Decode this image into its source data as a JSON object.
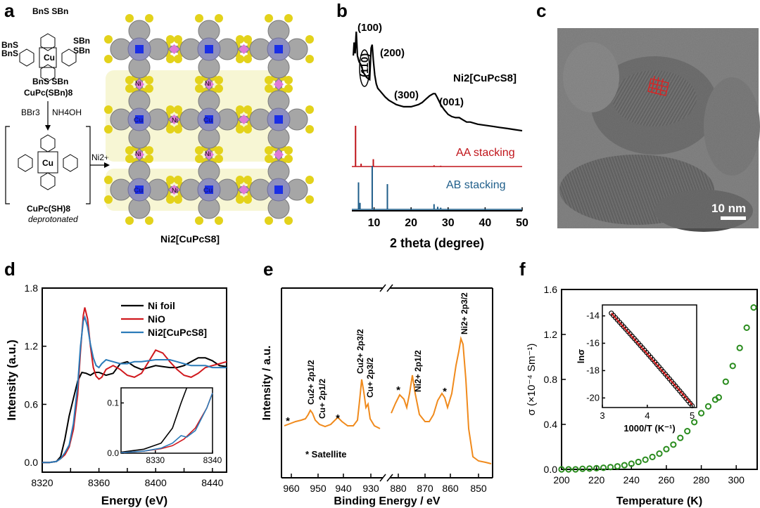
{
  "panel_labels": {
    "a": "a",
    "b": "b",
    "c": "c",
    "d": "d",
    "e": "e",
    "f": "f"
  },
  "panel_a": {
    "mol1_top": "BnS  SBn",
    "mol1_left": [
      "BnS",
      "BnS"
    ],
    "mol1_right": [
      "SBn",
      "SBn"
    ],
    "mol1_bottom": "BnS  SBn",
    "mol1_center": "Cu",
    "mol1_name": "CuPc(SBn)8",
    "reagent_left": "BBr3",
    "reagent_right": "NH4OH",
    "mol2_center": "Cu",
    "mol2_name": "CuPc(SH)8",
    "mol2_state": "deprotonated",
    "reagent_ni": "Ni2+",
    "framework_name": "Ni2[CuPcS8]",
    "atom_labels": {
      "cu": "Cu",
      "ni": "Ni",
      "s": "S",
      "n": "N"
    },
    "colors": {
      "cu": "#1a2ee6",
      "ni": "#e07ad8",
      "s": "#e3d21b",
      "c": "#8a8a8a",
      "n": "#8e8fbd",
      "highlight": "#f2f0b8"
    }
  },
  "panel_b": {
    "xlabel": "2 theta (degree)",
    "xticks": [
      10,
      20,
      30,
      40,
      50
    ],
    "peak_labels": [
      "(100)",
      "(110)",
      "(200)",
      "(300)",
      "(001)"
    ],
    "series_name": "Ni2[CuPcS8]",
    "aa_label": "AA stacking",
    "ab_label": "AB stacking",
    "colors": {
      "exp": "#000000",
      "aa": "#c0141a",
      "ab": "#1f5e8a"
    },
    "exp": {
      "x": [
        4.4,
        4.6,
        4.9,
        5.1,
        5.2,
        5.5,
        5.8,
        6.0,
        6.4,
        6.8,
        7.2,
        7.6,
        8.0,
        8.4,
        8.8,
        9.0,
        9.2,
        9.5,
        9.8,
        10.2,
        10.6,
        11.0,
        12,
        13,
        14,
        15,
        16,
        17,
        18,
        19,
        20,
        21,
        22,
        23,
        24,
        25,
        26,
        26.5,
        27,
        28,
        29,
        30,
        31,
        32,
        33,
        34,
        35,
        36,
        38,
        40,
        42,
        44,
        46,
        48,
        50
      ],
      "y": [
        0.78,
        0.9,
        0.8,
        0.95,
        1.0,
        0.78,
        0.74,
        0.72,
        0.7,
        0.66,
        0.62,
        0.6,
        0.58,
        0.57,
        0.56,
        0.7,
        0.85,
        0.88,
        0.74,
        0.6,
        0.52,
        0.48,
        0.44,
        0.4,
        0.37,
        0.35,
        0.33,
        0.32,
        0.31,
        0.31,
        0.31,
        0.32,
        0.33,
        0.35,
        0.38,
        0.41,
        0.43,
        0.43,
        0.4,
        0.33,
        0.28,
        0.24,
        0.22,
        0.21,
        0.21,
        0.19,
        0.17,
        0.17,
        0.15,
        0.14,
        0.13,
        0.12,
        0.11,
        0.1,
        0.09
      ]
    },
    "aa_peaks": [
      [
        5.0,
        1.0
      ],
      [
        6.5,
        0.07
      ],
      [
        9.8,
        0.18
      ],
      [
        26.2,
        0.03
      ],
      [
        28.0,
        0.02
      ]
    ],
    "ab_peaks": [
      [
        5.8,
        0.62
      ],
      [
        6.2,
        0.15
      ],
      [
        9.5,
        1.0
      ],
      [
        13.6,
        0.58
      ],
      [
        26.2,
        0.12
      ],
      [
        27.2,
        0.06
      ],
      [
        28.0,
        0.04
      ]
    ]
  },
  "panel_c": {
    "scale_bar": "10 nm"
  },
  "panel_d": {
    "xlabel": "Energy (eV)",
    "ylabel": "Intensity (a.u.)",
    "xticks": [
      8320,
      8340,
      8360,
      8380,
      8400,
      8420,
      8440
    ],
    "yticks": [
      "0.0",
      "0.6",
      "1.2",
      "1.8"
    ],
    "legend": [
      "Ni foil",
      "NiO",
      "Ni2[CuPcS8]"
    ],
    "colors": [
      "#000000",
      "#d0191e",
      "#2b7bb9"
    ],
    "xlim": [
      8320,
      8450
    ],
    "ylim": [
      -0.1,
      1.8
    ],
    "series": [
      {
        "name": "Ni foil",
        "x": [
          8320,
          8325,
          8330,
          8333,
          8336,
          8339,
          8342,
          8345,
          8348,
          8351,
          8354,
          8357,
          8360,
          8365,
          8370,
          8375,
          8380,
          8385,
          8390,
          8395,
          8400,
          8405,
          8410,
          8415,
          8420,
          8425,
          8430,
          8435,
          8440,
          8445,
          8450
        ],
        "y": [
          0.0,
          0.0,
          0.01,
          0.06,
          0.24,
          0.48,
          0.66,
          0.84,
          0.93,
          0.92,
          0.9,
          0.93,
          0.93,
          0.9,
          0.92,
          1.02,
          1.04,
          0.99,
          0.96,
          0.98,
          1.0,
          0.99,
          0.98,
          0.98,
          1.0,
          1.04,
          1.08,
          1.08,
          1.05,
          1.0,
          0.99
        ]
      },
      {
        "name": "NiO",
        "x": [
          8320,
          8325,
          8330,
          8333,
          8336,
          8339,
          8342,
          8345,
          8347,
          8349,
          8350,
          8352,
          8354,
          8356,
          8358,
          8360,
          8362,
          8365,
          8370,
          8375,
          8380,
          8385,
          8390,
          8395,
          8400,
          8405,
          8410,
          8415,
          8420,
          8425,
          8430,
          8435,
          8440,
          8445,
          8450
        ],
        "y": [
          0.0,
          0.0,
          0.01,
          0.04,
          0.08,
          0.16,
          0.34,
          0.7,
          1.15,
          1.52,
          1.6,
          1.48,
          1.2,
          0.98,
          0.89,
          0.86,
          0.88,
          0.96,
          1.0,
          0.96,
          0.9,
          0.88,
          0.92,
          1.04,
          1.16,
          1.13,
          1.04,
          0.96,
          0.9,
          0.88,
          0.92,
          0.98,
          1.0,
          1.02,
          1.04
        ]
      },
      {
        "name": "Ni2[CuPcS8]",
        "x": [
          8320,
          8325,
          8330,
          8333,
          8336,
          8339,
          8342,
          8345,
          8347,
          8349,
          8350,
          8352,
          8354,
          8356,
          8358,
          8360,
          8362,
          8365,
          8370,
          8375,
          8380,
          8385,
          8390,
          8395,
          8400,
          8405,
          8410,
          8415,
          8420,
          8425,
          8430,
          8435,
          8440,
          8445,
          8450
        ],
        "y": [
          0.0,
          0.0,
          0.01,
          0.04,
          0.1,
          0.18,
          0.4,
          0.8,
          1.2,
          1.46,
          1.5,
          1.4,
          1.22,
          1.08,
          1.0,
          0.98,
          1.02,
          1.06,
          1.04,
          1.02,
          1.02,
          1.04,
          1.04,
          1.05,
          1.06,
          1.06,
          1.06,
          1.04,
          1.02,
          1.0,
          1.0,
          1.0,
          0.98,
          0.98,
          0.98
        ]
      }
    ],
    "inset": {
      "xticks": [
        8330,
        8340
      ],
      "yticks": [
        "0.0",
        "0.1"
      ],
      "xlim": [
        8324,
        8340
      ],
      "ylim": [
        0,
        0.13
      ]
    }
  },
  "panel_e": {
    "xlabel": "Binding Energy / eV",
    "ylabel": "Intensity / a.u.",
    "xticks": [
      "960",
      "950",
      "940",
      "930",
      "880",
      "870",
      "860",
      "850"
    ],
    "annotations": [
      "Cu2+ 2p1/2",
      "Cu+ 2p1/2",
      "Cu2+ 2p3/2",
      "Cu+ 2p3/2",
      "Ni2+ 2p1/2",
      "Ni2+ 2p3/2"
    ],
    "satellite_mark": "*",
    "legend_note": "* Satellite",
    "color": "#f08a1c"
  },
  "panel_f": {
    "xlabel": "Temperature (K)",
    "ylabel": "σ (×10⁻⁴ Sm⁻¹)",
    "xticks": [
      200,
      220,
      240,
      260,
      280,
      300
    ],
    "yticks": [
      "0.0",
      "0.4",
      "0.8",
      "1.2",
      "1.6"
    ],
    "xlim": [
      200,
      312
    ],
    "ylim": [
      0,
      1.6
    ],
    "color": "#2a8c1e",
    "points": {
      "x": [
        200,
        204,
        208,
        212,
        216,
        220,
        224,
        228,
        232,
        236,
        240,
        244,
        248,
        252,
        256,
        260,
        264,
        268,
        272,
        276,
        280,
        284,
        288,
        290,
        294,
        298,
        302,
        306,
        310
      ],
      "y": [
        0.0,
        0.0,
        0.0,
        0.005,
        0.007,
        0.01,
        0.014,
        0.02,
        0.027,
        0.037,
        0.05,
        0.066,
        0.086,
        0.11,
        0.14,
        0.18,
        0.22,
        0.28,
        0.34,
        0.42,
        0.5,
        0.56,
        0.62,
        0.64,
        0.78,
        0.92,
        1.08,
        1.26,
        1.44
      ]
    },
    "inset": {
      "xlabel": "1000/T (K⁻¹)",
      "ylabel": "lnσ",
      "xticks": [
        3,
        4,
        5
      ],
      "yticks": [
        "-14",
        "-16",
        "-18",
        "-20"
      ],
      "xlim": [
        3,
        5.1
      ],
      "ylim": [
        -20.7,
        -13.2
      ]
    }
  }
}
